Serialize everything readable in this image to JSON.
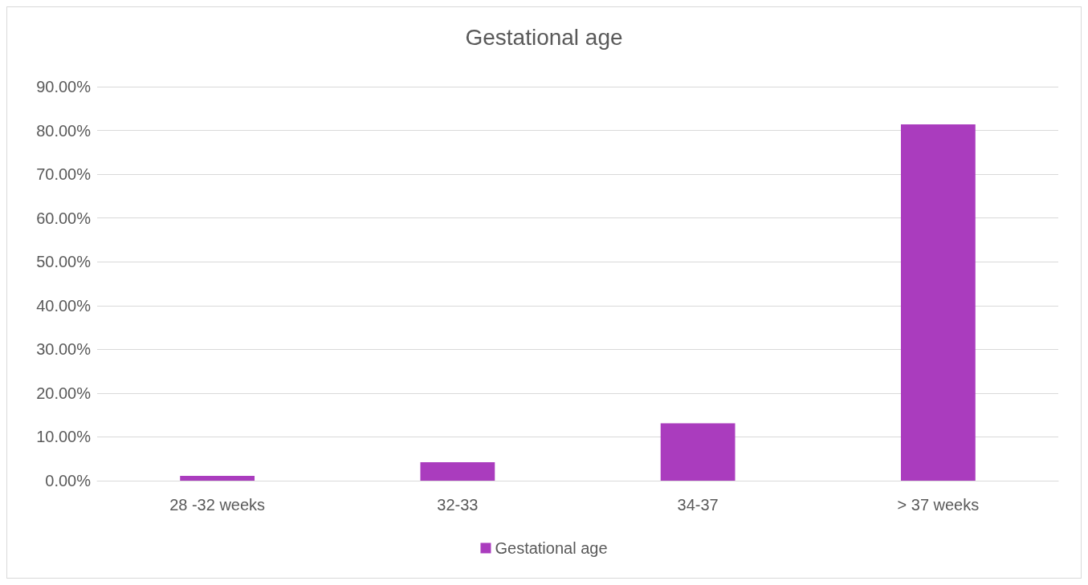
{
  "chart_data": {
    "type": "bar",
    "title": "Gestational age",
    "categories": [
      "28 -32 weeks",
      "32-33",
      "34-37",
      "> 37 weeks"
    ],
    "series": [
      {
        "name": "Gestational age",
        "color": "#aa3cbe",
        "values": [
          1.1,
          4.2,
          13.1,
          81.4
        ]
      }
    ],
    "ylim": [
      0,
      90
    ],
    "yticks": [
      {
        "value": 0,
        "label": "0.00%"
      },
      {
        "value": 10,
        "label": "10.00%"
      },
      {
        "value": 20,
        "label": "20.00%"
      },
      {
        "value": 30,
        "label": "30.00%"
      },
      {
        "value": 40,
        "label": "40.00%"
      },
      {
        "value": 50,
        "label": "50.00%"
      },
      {
        "value": 60,
        "label": "60.00%"
      },
      {
        "value": 70,
        "label": "70.00%"
      },
      {
        "value": 80,
        "label": "80.00%"
      },
      {
        "value": 90,
        "label": "90.00%"
      }
    ],
    "grid": "y",
    "legend": "bottom"
  }
}
